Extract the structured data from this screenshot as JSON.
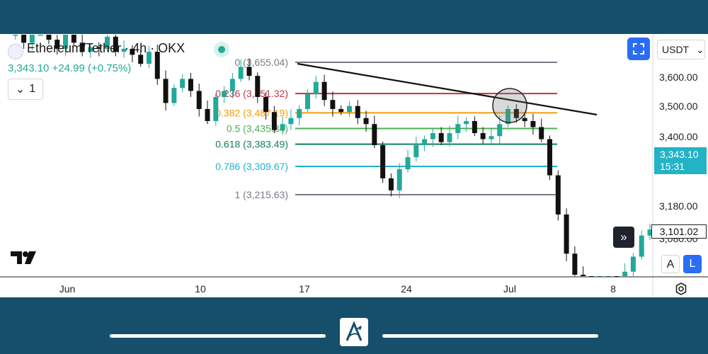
{
  "header": {
    "title": "Ethereum/Tether · 4h · OKX",
    "price_line": "3,343.10  +24.99 (+0.75%)",
    "collapse_label": "1"
  },
  "toolbar": {
    "currency": "USDT",
    "auto_label": "A",
    "log_label": "L",
    "goto_label": "»"
  },
  "colors": {
    "up": "#22a99a",
    "down": "#111111",
    "accent": "#2a6df4",
    "price_tag": "#22b3c7",
    "fib_0": "#787b86",
    "fib_236": "#c0354a",
    "fib_382": "#f29d0a",
    "fib_5": "#4caf50",
    "fib_618": "#128060",
    "fib_786": "#22b3c7",
    "fib_1": "#787b86",
    "trendline": "#111111"
  },
  "icons": [
    "ethereum-icon",
    "live-indicator-icon",
    "fullscreen-icon",
    "chevron-down-icon",
    "tradingview-logo",
    "settings-icon"
  ],
  "chart_data": {
    "type": "candlestick",
    "symbol": "Ethereum/Tether",
    "interval": "4h",
    "exchange": "OKX",
    "last_price": "3,343.10",
    "countdown": "15:31",
    "last_marker": "3,101.02",
    "y_ticks": [
      "3,600.00",
      "3,500.00",
      "3,400.00",
      "3,180.00",
      "3,080.00"
    ],
    "y_tick_values": [
      3600,
      3500,
      3400,
      3180,
      3080
    ],
    "x_ticks": [
      "Jun",
      "10",
      "17",
      "24",
      "Jul",
      "8"
    ],
    "fib_levels": [
      {
        "ratio": "0",
        "price": "3,655.04",
        "label": "0 (3,655.04)"
      },
      {
        "ratio": "0.236",
        "price": "3,551.32",
        "label": "0.236 (3,551.32)"
      },
      {
        "ratio": "0.382",
        "price": "3,487.19",
        "label": "0.382 (3,487.19)"
      },
      {
        "ratio": "0.5",
        "price": "3,435.34",
        "label": "0.5 (3,435.34)"
      },
      {
        "ratio": "0.618",
        "price": "3,383.49",
        "label": "0.618 (3,383.49)"
      },
      {
        "ratio": "0.786",
        "price": "3,309.67",
        "label": "0.786 (3,309.67)"
      },
      {
        "ratio": "1",
        "price": "3,215.63",
        "label": "1 (3,215.63)"
      }
    ],
    "price_path": [
      3745,
      3760,
      3720,
      3760,
      3790,
      3730,
      3700,
      3760,
      3720,
      3690,
      3705,
      3700,
      3740,
      3690,
      3700,
      3680,
      3650,
      3690,
      3600,
      3520,
      3570,
      3600,
      3560,
      3500,
      3460,
      3540,
      3560,
      3600,
      3640,
      3610,
      3540,
      3490,
      3430,
      3450,
      3470,
      3500,
      3550,
      3590,
      3530,
      3500,
      3490,
      3510,
      3470,
      3450,
      3380,
      3270,
      3230,
      3300,
      3340,
      3380,
      3400,
      3420,
      3390,
      3420,
      3450,
      3460,
      3420,
      3400,
      3410,
      3450,
      3500,
      3470,
      3460,
      3440,
      3400,
      3280,
      3150,
      3020,
      2950,
      2880,
      2810,
      2860,
      2900,
      2880,
      2960,
      3010,
      3080,
      3100
    ]
  }
}
